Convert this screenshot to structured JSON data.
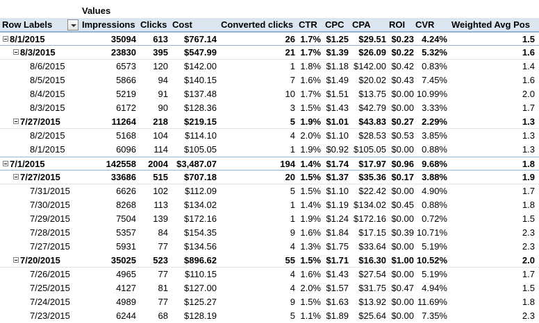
{
  "header": {
    "values_label": "Values",
    "row_labels": "Row Labels",
    "columns": [
      "Impressions",
      "Clicks",
      "Cost",
      "Converted clicks",
      "CTR",
      "CPC",
      "CPA",
      "ROI",
      "CVR",
      "Weighted Avg Pos"
    ]
  },
  "rows": [
    {
      "level": 0,
      "label": "8/1/2015",
      "values": [
        "35094",
        "613",
        "$767.14",
        "26",
        "1.7%",
        "$1.25",
        "$29.51",
        "$0.23",
        "4.24%",
        "1.5"
      ]
    },
    {
      "level": 1,
      "label": "8/3/2015",
      "values": [
        "23830",
        "395",
        "$547.99",
        "21",
        "1.7%",
        "$1.39",
        "$26.09",
        "$0.22",
        "5.32%",
        "1.6"
      ]
    },
    {
      "level": 2,
      "label": "8/6/2015",
      "values": [
        "6573",
        "120",
        "$142.00",
        "1",
        "1.8%",
        "$1.18",
        "$142.00",
        "$0.42",
        "0.83%",
        "1.4"
      ]
    },
    {
      "level": 2,
      "label": "8/5/2015",
      "values": [
        "5866",
        "94",
        "$140.15",
        "7",
        "1.6%",
        "$1.49",
        "$20.02",
        "$0.43",
        "7.45%",
        "1.6"
      ]
    },
    {
      "level": 2,
      "label": "8/4/2015",
      "values": [
        "5219",
        "91",
        "$137.48",
        "10",
        "1.7%",
        "$1.51",
        "$13.75",
        "$0.00",
        "10.99%",
        "2.0"
      ]
    },
    {
      "level": 2,
      "label": "8/3/2015",
      "values": [
        "6172",
        "90",
        "$128.36",
        "3",
        "1.5%",
        "$1.43",
        "$42.79",
        "$0.00",
        "3.33%",
        "1.7"
      ]
    },
    {
      "level": 1,
      "label": "7/27/2015",
      "values": [
        "11264",
        "218",
        "$219.15",
        "5",
        "1.9%",
        "$1.01",
        "$43.83",
        "$0.27",
        "2.29%",
        "1.3"
      ]
    },
    {
      "level": 2,
      "label": "8/2/2015",
      "values": [
        "5168",
        "104",
        "$114.10",
        "4",
        "2.0%",
        "$1.10",
        "$28.53",
        "$0.53",
        "3.85%",
        "1.3"
      ]
    },
    {
      "level": 2,
      "label": "8/1/2015",
      "values": [
        "6096",
        "114",
        "$105.05",
        "1",
        "1.9%",
        "$0.92",
        "$105.05",
        "$0.00",
        "0.88%",
        "1.3"
      ]
    },
    {
      "level": 0,
      "label": "7/1/2015",
      "values": [
        "142558",
        "2004",
        "$3,487.07",
        "194",
        "1.4%",
        "$1.74",
        "$17.97",
        "$0.96",
        "9.68%",
        "1.8"
      ]
    },
    {
      "level": 1,
      "label": "7/27/2015",
      "values": [
        "33686",
        "515",
        "$707.18",
        "20",
        "1.5%",
        "$1.37",
        "$35.36",
        "$0.17",
        "3.88%",
        "1.9"
      ]
    },
    {
      "level": 2,
      "label": "7/31/2015",
      "values": [
        "6626",
        "102",
        "$112.09",
        "5",
        "1.5%",
        "$1.10",
        "$22.42",
        "$0.00",
        "4.90%",
        "1.7"
      ]
    },
    {
      "level": 2,
      "label": "7/30/2015",
      "values": [
        "8268",
        "113",
        "$134.02",
        "1",
        "1.4%",
        "$1.19",
        "$134.02",
        "$0.45",
        "0.88%",
        "1.8"
      ]
    },
    {
      "level": 2,
      "label": "7/29/2015",
      "values": [
        "7504",
        "139",
        "$172.16",
        "1",
        "1.9%",
        "$1.24",
        "$172.16",
        "$0.00",
        "0.72%",
        "1.5"
      ]
    },
    {
      "level": 2,
      "label": "7/28/2015",
      "values": [
        "5357",
        "84",
        "$154.35",
        "9",
        "1.6%",
        "$1.84",
        "$17.15",
        "$0.39",
        "10.71%",
        "2.3"
      ]
    },
    {
      "level": 2,
      "label": "7/27/2015",
      "values": [
        "5931",
        "77",
        "$134.56",
        "4",
        "1.3%",
        "$1.75",
        "$33.64",
        "$0.00",
        "5.19%",
        "2.3"
      ]
    },
    {
      "level": 1,
      "label": "7/20/2015",
      "values": [
        "35025",
        "523",
        "$896.62",
        "55",
        "1.5%",
        "$1.71",
        "$16.30",
        "$1.00",
        "10.52%",
        "2.0"
      ]
    },
    {
      "level": 2,
      "label": "7/26/2015",
      "values": [
        "4965",
        "77",
        "$110.15",
        "4",
        "1.6%",
        "$1.43",
        "$27.54",
        "$0.00",
        "5.19%",
        "1.7"
      ]
    },
    {
      "level": 2,
      "label": "7/25/2015",
      "values": [
        "4127",
        "81",
        "$127.00",
        "4",
        "2.0%",
        "$1.57",
        "$31.75",
        "$0.47",
        "4.94%",
        "1.5"
      ]
    },
    {
      "level": 2,
      "label": "7/24/2015",
      "values": [
        "4989",
        "77",
        "$125.27",
        "9",
        "1.5%",
        "$1.63",
        "$13.92",
        "$0.00",
        "11.69%",
        "1.8"
      ]
    },
    {
      "level": 2,
      "label": "7/23/2015",
      "values": [
        "6244",
        "68",
        "$128.19",
        "5",
        "1.1%",
        "$1.89",
        "$25.64",
        "$0.00",
        "7.35%",
        "2.3"
      ]
    }
  ],
  "colors": {
    "header_fill": "#dce6f1",
    "border": "#95b3d7"
  }
}
